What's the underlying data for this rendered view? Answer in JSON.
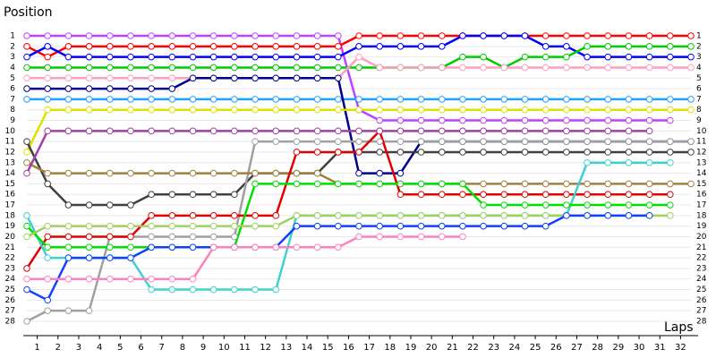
{
  "chart_data": {
    "type": "line",
    "y_label": "Position",
    "x_label": "Laps",
    "x": [
      0,
      1,
      2,
      3,
      4,
      5,
      6,
      7,
      8,
      9,
      10,
      11,
      12,
      13,
      14,
      15,
      16,
      17,
      18,
      19,
      20,
      21,
      22,
      23,
      24,
      25,
      26,
      27,
      28,
      29,
      30,
      31,
      32
    ],
    "xlim": [
      0,
      32
    ],
    "xticks": [
      1,
      2,
      3,
      4,
      5,
      6,
      7,
      8,
      9,
      10,
      11,
      12,
      13,
      14,
      15,
      16,
      17,
      18,
      19,
      20,
      21,
      22,
      23,
      24,
      25,
      26,
      27,
      28,
      29,
      30,
      31,
      32
    ],
    "ylim": [
      1,
      28
    ],
    "y_inverted": true,
    "yticks": [
      1,
      2,
      3,
      4,
      5,
      6,
      7,
      8,
      9,
      10,
      11,
      12,
      13,
      14,
      15,
      16,
      17,
      18,
      19,
      20,
      21,
      22,
      23,
      24,
      25,
      26,
      27,
      28
    ],
    "grid": true,
    "series": [
      {
        "color": "#c040ff",
        "values": [
          1,
          1,
          1,
          1,
          1,
          1,
          1,
          1,
          1,
          1,
          1,
          1,
          1,
          1,
          1,
          1,
          8,
          9,
          9,
          9,
          9,
          9,
          9,
          9,
          9,
          9,
          9,
          9,
          9,
          9,
          9,
          9,
          null
        ]
      },
      {
        "color": "#ff0000",
        "values": [
          2,
          3,
          2,
          2,
          2,
          2,
          2,
          2,
          2,
          2,
          2,
          2,
          2,
          2,
          2,
          2,
          1,
          1,
          1,
          1,
          1,
          1,
          1,
          1,
          1,
          1,
          1,
          1,
          1,
          1,
          1,
          1,
          1
        ]
      },
      {
        "color": "#0000ff",
        "values": [
          3,
          2,
          3,
          3,
          3,
          3,
          3,
          3,
          3,
          3,
          3,
          3,
          3,
          3,
          3,
          3,
          2,
          2,
          2,
          2,
          2,
          1,
          1,
          1,
          1,
          2,
          2,
          3,
          3,
          3,
          3,
          3,
          3
        ]
      },
      {
        "color": "#00cc00",
        "values": [
          4,
          4,
          4,
          4,
          4,
          4,
          4,
          4,
          4,
          4,
          4,
          4,
          4,
          4,
          4,
          4,
          4,
          4,
          4,
          4,
          4,
          3,
          3,
          4,
          3,
          3,
          3,
          2,
          2,
          2,
          2,
          2,
          2
        ]
      },
      {
        "color": "#ff9ec0",
        "values": [
          5,
          5,
          5,
          5,
          5,
          5,
          5,
          5,
          5,
          5,
          5,
          5,
          5,
          5,
          5,
          5,
          3,
          4,
          4,
          4,
          4,
          4,
          4,
          4,
          4,
          4,
          4,
          4,
          4,
          4,
          4,
          4,
          4
        ]
      },
      {
        "color": "#20a0ff",
        "values": [
          7,
          7,
          7,
          7,
          7,
          7,
          7,
          7,
          7,
          7,
          7,
          7,
          7,
          7,
          7,
          7,
          7,
          7,
          7,
          7,
          7,
          7,
          7,
          7,
          7,
          7,
          7,
          7,
          7,
          7,
          7,
          7,
          7
        ]
      },
      {
        "color": "#000090",
        "values": [
          6,
          6,
          6,
          6,
          6,
          6,
          6,
          6,
          5,
          5,
          5,
          5,
          5,
          5,
          5,
          5,
          14,
          14,
          14,
          11,
          11,
          11,
          11,
          11,
          11,
          11,
          11,
          11,
          11,
          11,
          11,
          11,
          11
        ]
      },
      {
        "color": "#e0e000",
        "values": [
          12,
          8,
          8,
          8,
          8,
          8,
          8,
          8,
          8,
          8,
          8,
          8,
          8,
          8,
          8,
          8,
          8,
          8,
          8,
          8,
          8,
          8,
          8,
          8,
          8,
          8,
          8,
          8,
          8,
          8,
          8,
          8,
          8
        ]
      },
      {
        "color": "#404040",
        "values": [
          11,
          15,
          17,
          17,
          17,
          17,
          16,
          16,
          16,
          16,
          16,
          14,
          14,
          14,
          14,
          12,
          12,
          12,
          12,
          12,
          12,
          12,
          12,
          12,
          12,
          12,
          12,
          12,
          12,
          12,
          12,
          12,
          12
        ]
      },
      {
        "color": "#a0a0a0",
        "values": [
          28,
          27,
          27,
          27,
          20,
          20,
          20,
          20,
          20,
          20,
          20,
          11,
          11,
          11,
          11,
          11,
          11,
          11,
          11,
          11,
          11,
          11,
          11,
          11,
          11,
          11,
          11,
          11,
          11,
          11,
          11,
          11,
          11
        ]
      },
      {
        "color": "#a08040",
        "values": [
          13,
          14,
          14,
          14,
          14,
          14,
          14,
          14,
          14,
          14,
          14,
          14,
          14,
          14,
          14,
          15,
          15,
          15,
          15,
          15,
          15,
          15,
          15,
          15,
          15,
          15,
          15,
          15,
          15,
          15,
          15,
          15,
          15
        ]
      },
      {
        "color": "#e00000",
        "values": [
          23,
          20,
          20,
          20,
          20,
          20,
          18,
          18,
          18,
          18,
          18,
          18,
          18,
          12,
          12,
          12,
          12,
          10,
          16,
          16,
          16,
          16,
          16,
          16,
          16,
          16,
          16,
          16,
          16,
          16,
          16,
          16,
          null
        ]
      },
      {
        "color": "#40d0d0",
        "values": [
          18,
          22,
          22,
          22,
          22,
          22,
          25,
          25,
          25,
          25,
          25,
          25,
          25,
          18,
          18,
          18,
          18,
          18,
          18,
          18,
          18,
          18,
          18,
          18,
          18,
          18,
          18,
          13,
          13,
          13,
          13,
          13,
          null
        ]
      },
      {
        "color": "#00e000",
        "values": [
          19,
          21,
          21,
          21,
          21,
          21,
          21,
          21,
          21,
          21,
          21,
          15,
          15,
          15,
          15,
          15,
          15,
          15,
          15,
          15,
          15,
          15,
          17,
          17,
          17,
          17,
          17,
          17,
          17,
          17,
          17,
          17,
          null
        ]
      },
      {
        "color": "#a0d060",
        "values": [
          20,
          19,
          19,
          19,
          19,
          19,
          19,
          19,
          19,
          19,
          19,
          19,
          19,
          18,
          18,
          18,
          18,
          18,
          18,
          18,
          18,
          18,
          18,
          18,
          18,
          18,
          18,
          18,
          18,
          18,
          18,
          18,
          null
        ]
      },
      {
        "color": "#1040ff",
        "values": [
          25,
          26,
          22,
          22,
          22,
          22,
          21,
          21,
          21,
          21,
          21,
          21,
          21,
          19,
          19,
          19,
          19,
          19,
          19,
          19,
          19,
          19,
          19,
          19,
          19,
          19,
          18,
          18,
          18,
          18,
          18,
          null,
          null
        ]
      },
      {
        "color": "#ff80c0",
        "values": [
          24,
          24,
          24,
          24,
          24,
          24,
          24,
          24,
          24,
          21,
          21,
          21,
          21,
          21,
          21,
          21,
          20,
          20,
          20,
          20,
          20,
          20,
          null,
          null,
          null,
          null,
          null,
          null,
          null,
          null,
          null,
          null,
          null
        ]
      },
      {
        "color": "#a040a0",
        "values": [
          14,
          10,
          10,
          10,
          10,
          10,
          10,
          10,
          10,
          10,
          10,
          10,
          10,
          10,
          10,
          10,
          10,
          10,
          10,
          10,
          10,
          10,
          10,
          10,
          10,
          10,
          10,
          10,
          10,
          10,
          10,
          null,
          null
        ]
      }
    ]
  }
}
